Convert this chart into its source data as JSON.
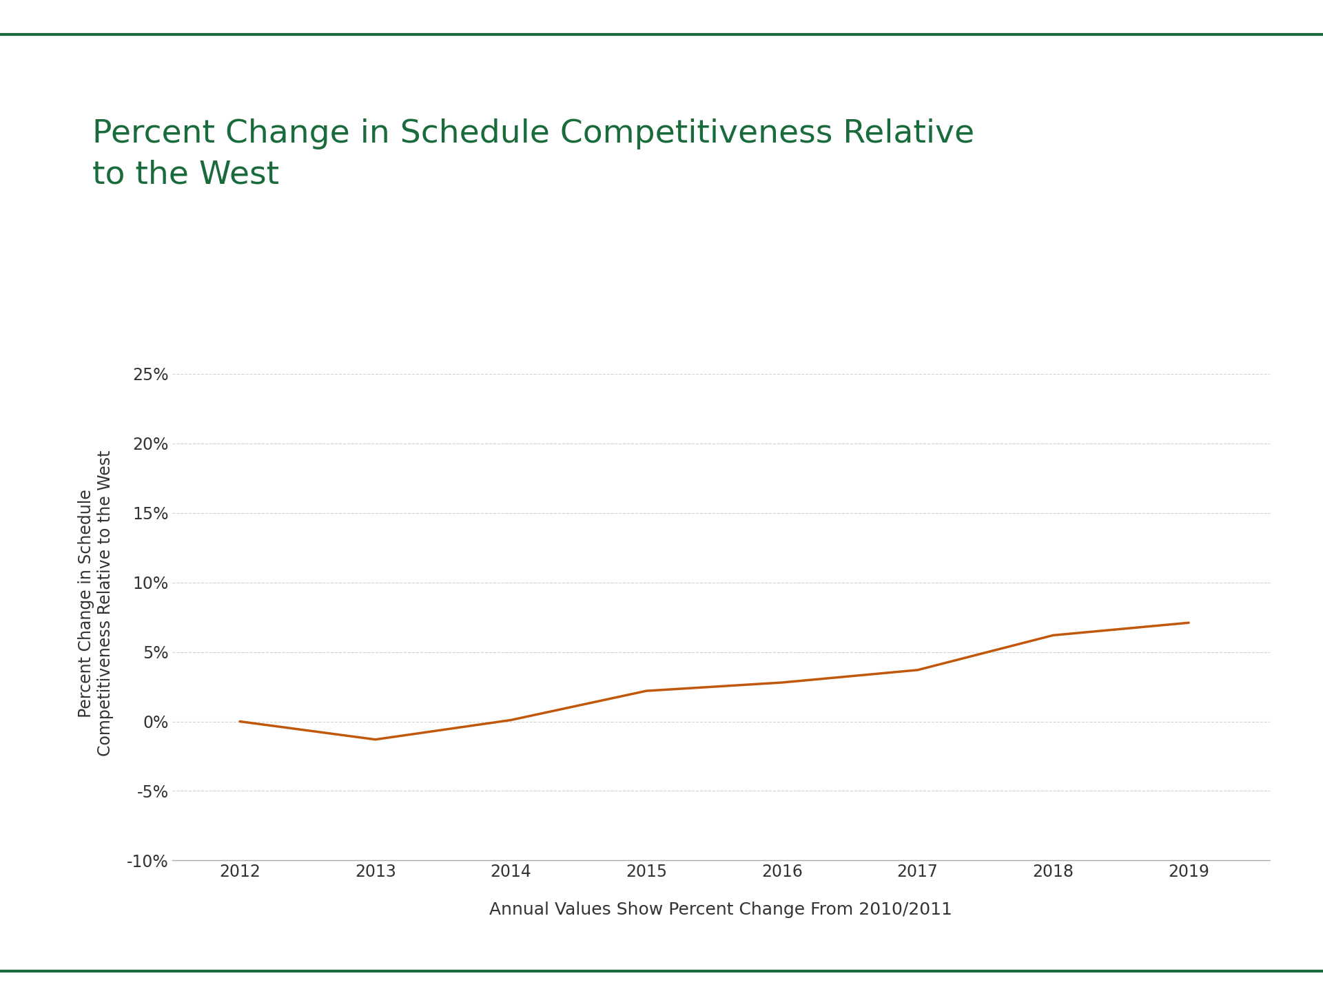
{
  "title": "Percent Change in Schedule Competitiveness Relative\nto the West",
  "title_color": "#1a6b3c",
  "xlabel": "Annual Values Show Percent Change From 2010/2011",
  "ylabel": "Percent Change in Schedule\nCompetitiveness Relative to the West",
  "years": [
    2012,
    2013,
    2014,
    2015,
    2016,
    2017,
    2018,
    2019
  ],
  "values": [
    0.0,
    -1.3,
    0.1,
    2.2,
    2.8,
    3.7,
    6.2,
    7.1
  ],
  "line_color": "#c0570a",
  "line_width": 2.5,
  "ylim": [
    -10,
    27
  ],
  "yticks": [
    -10,
    -5,
    0,
    5,
    10,
    15,
    20,
    25
  ],
  "ytick_labels": [
    "-10%",
    "-5%",
    "0%",
    "5%",
    "10%",
    "15%",
    "20%",
    "25%"
  ],
  "background_color": "#ffffff",
  "grid_color": "#cccccc",
  "top_bar_color": "#1a6b3c",
  "bottom_bar_color": "#1a6b3c",
  "title_fontsize": 34,
  "axis_label_fontsize": 17,
  "tick_fontsize": 17,
  "xlabel_fontsize": 18
}
